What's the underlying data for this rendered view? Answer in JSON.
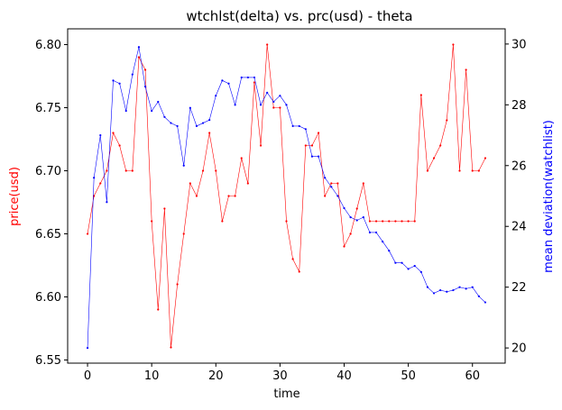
{
  "chart_data": {
    "type": "line",
    "title": "wtchlst(delta) vs. prc(usd) - theta",
    "xlabel": "time",
    "ylabel_left": "price(usd)",
    "ylabel_right": "mean deviation(watchlist)",
    "xlim": [
      -3.1,
      65.1
    ],
    "ylim_left": [
      6.5475,
      6.8125
    ],
    "ylim_right": [
      19.5,
      30.5
    ],
    "x_ticks": [
      0,
      10,
      20,
      30,
      40,
      50,
      60
    ],
    "y_left_ticks": [
      6.55,
      6.6,
      6.65,
      6.7,
      6.75,
      6.8
    ],
    "y_right_ticks": [
      20,
      22,
      24,
      26,
      28,
      30
    ],
    "grid": false,
    "legend": "none",
    "series": [
      {
        "axis": "left",
        "color": "#ff0000",
        "values": [
          6.65,
          6.68,
          6.69,
          6.7,
          6.73,
          6.72,
          6.7,
          6.7,
          6.79,
          6.78,
          6.66,
          6.59,
          6.67,
          6.56,
          6.61,
          6.65,
          6.69,
          6.68,
          6.7,
          6.73,
          6.7,
          6.66,
          6.68,
          6.68,
          6.71,
          6.69,
          6.77,
          6.72,
          6.8,
          6.75,
          6.75,
          6.66,
          6.63,
          6.62,
          6.72,
          6.72,
          6.73,
          6.68,
          6.69,
          6.69,
          6.64,
          6.65,
          6.67,
          6.69,
          6.66,
          6.66,
          6.66,
          6.66,
          6.66,
          6.66,
          6.66,
          6.66,
          6.76,
          6.7,
          6.71,
          6.72,
          6.74,
          6.8,
          6.7,
          6.78,
          6.7,
          6.7,
          6.71
        ]
      },
      {
        "axis": "right",
        "color": "#0000ff",
        "values": [
          20.0,
          25.6,
          27.0,
          24.8,
          28.8,
          28.7,
          27.8,
          29.0,
          29.9,
          28.6,
          27.8,
          28.1,
          27.6,
          27.4,
          27.3,
          26.0,
          27.9,
          27.3,
          27.4,
          27.5,
          28.3,
          28.8,
          28.7,
          28.0,
          28.9,
          28.9,
          28.9,
          28.0,
          28.4,
          28.1,
          28.3,
          28.0,
          27.3,
          27.3,
          27.2,
          26.3,
          26.3,
          25.6,
          25.3,
          25.0,
          24.6,
          24.3,
          24.2,
          24.3,
          23.8,
          23.8,
          23.5,
          23.2,
          22.8,
          22.8,
          22.6,
          22.7,
          22.5,
          22.0,
          21.8,
          21.9,
          21.85,
          21.9,
          22.0,
          21.95,
          22.0,
          21.7,
          21.5
        ]
      }
    ]
  }
}
